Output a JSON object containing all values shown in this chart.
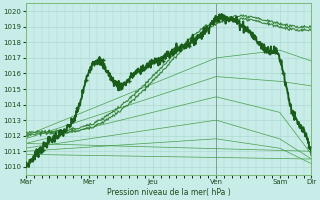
{
  "bg_color": "#c8ece8",
  "grid_color": "#aad4cc",
  "line_color_dark": "#1a5c1a",
  "line_color_medium": "#2a7a2a",
  "line_color_light": "#3a963a",
  "ylabel": "Pression niveau de la mer( hPa )",
  "ylim": [
    1009.5,
    1020.5
  ],
  "yticks": [
    1010,
    1011,
    1012,
    1013,
    1014,
    1015,
    1016,
    1017,
    1018,
    1019,
    1020
  ],
  "xtick_labels": [
    "Mar",
    "Mer",
    "Jeu",
    "Ven",
    "Sam",
    "Dir"
  ],
  "xtick_positions": [
    0,
    48,
    96,
    144,
    192,
    216
  ],
  "x_total": 216,
  "vline_x": 144,
  "ctrl_x": [
    0,
    8,
    16,
    24,
    32,
    40,
    48,
    56,
    64,
    72,
    80,
    88,
    96,
    104,
    112,
    120,
    128,
    136,
    144,
    152,
    160,
    168,
    176,
    184,
    192,
    200,
    208,
    216
  ],
  "ctrl_y": [
    1010.0,
    1010.8,
    1011.5,
    1012.0,
    1012.5,
    1013.8,
    1016.2,
    1016.8,
    1015.8,
    1015.2,
    1015.8,
    1016.3,
    1016.7,
    1017.0,
    1017.4,
    1017.8,
    1018.2,
    1018.8,
    1019.5,
    1019.6,
    1019.3,
    1018.8,
    1018.0,
    1017.5,
    1017.0,
    1014.0,
    1012.5,
    1010.8
  ],
  "line2_x": [
    0,
    24,
    48,
    96,
    144,
    192,
    216
  ],
  "line2_y": [
    1012.0,
    1012.2,
    1012.5,
    1015.5,
    1019.2,
    1019.0,
    1018.8
  ],
  "line3_x": [
    0,
    24,
    48,
    96,
    144,
    192,
    216
  ],
  "line3_y": [
    1012.2,
    1012.3,
    1012.7,
    1015.8,
    1019.4,
    1019.2,
    1019.0
  ],
  "thin_lines": [
    {
      "x": [
        0,
        144,
        192,
        216
      ],
      "y": [
        1012.0,
        1017.0,
        1017.5,
        1016.8
      ]
    },
    {
      "x": [
        0,
        144,
        192,
        216
      ],
      "y": [
        1011.8,
        1015.8,
        1015.5,
        1015.2
      ]
    },
    {
      "x": [
        0,
        144,
        192,
        216
      ],
      "y": [
        1011.5,
        1014.5,
        1013.5,
        1010.8
      ]
    },
    {
      "x": [
        0,
        144,
        192,
        216
      ],
      "y": [
        1011.2,
        1013.0,
        1011.8,
        1010.5
      ]
    },
    {
      "x": [
        0,
        144,
        192,
        216
      ],
      "y": [
        1011.0,
        1011.8,
        1011.2,
        1010.2
      ]
    },
    {
      "x": [
        0,
        216
      ],
      "y": [
        1011.5,
        1011.0
      ]
    },
    {
      "x": [
        0,
        216
      ],
      "y": [
        1010.8,
        1010.5
      ]
    }
  ]
}
